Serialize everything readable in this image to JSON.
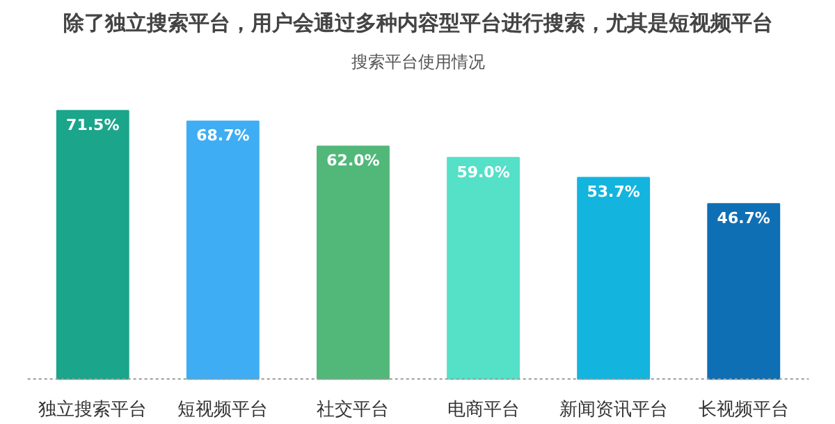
{
  "chart_data": {
    "type": "bar",
    "title": "除了独立搜索平台，用户会通过多种内容型平台进行搜索，尤其是短视频平台",
    "subtitle": "搜索平台使用情况",
    "categories": [
      "独立搜索平台",
      "短视频平台",
      "社交平台",
      "电商平台",
      "新闻资讯平台",
      "长视频平台"
    ],
    "values": [
      71.5,
      68.7,
      62.0,
      59.0,
      53.7,
      46.7
    ],
    "value_labels": [
      "71.5%",
      "68.7%",
      "62.0%",
      "59.0%",
      "53.7%",
      "46.7%"
    ],
    "colors": [
      "#1ba58a",
      "#3fadf3",
      "#52b87a",
      "#55e0c8",
      "#13b5de",
      "#0f6fb5"
    ],
    "grid": false
  }
}
